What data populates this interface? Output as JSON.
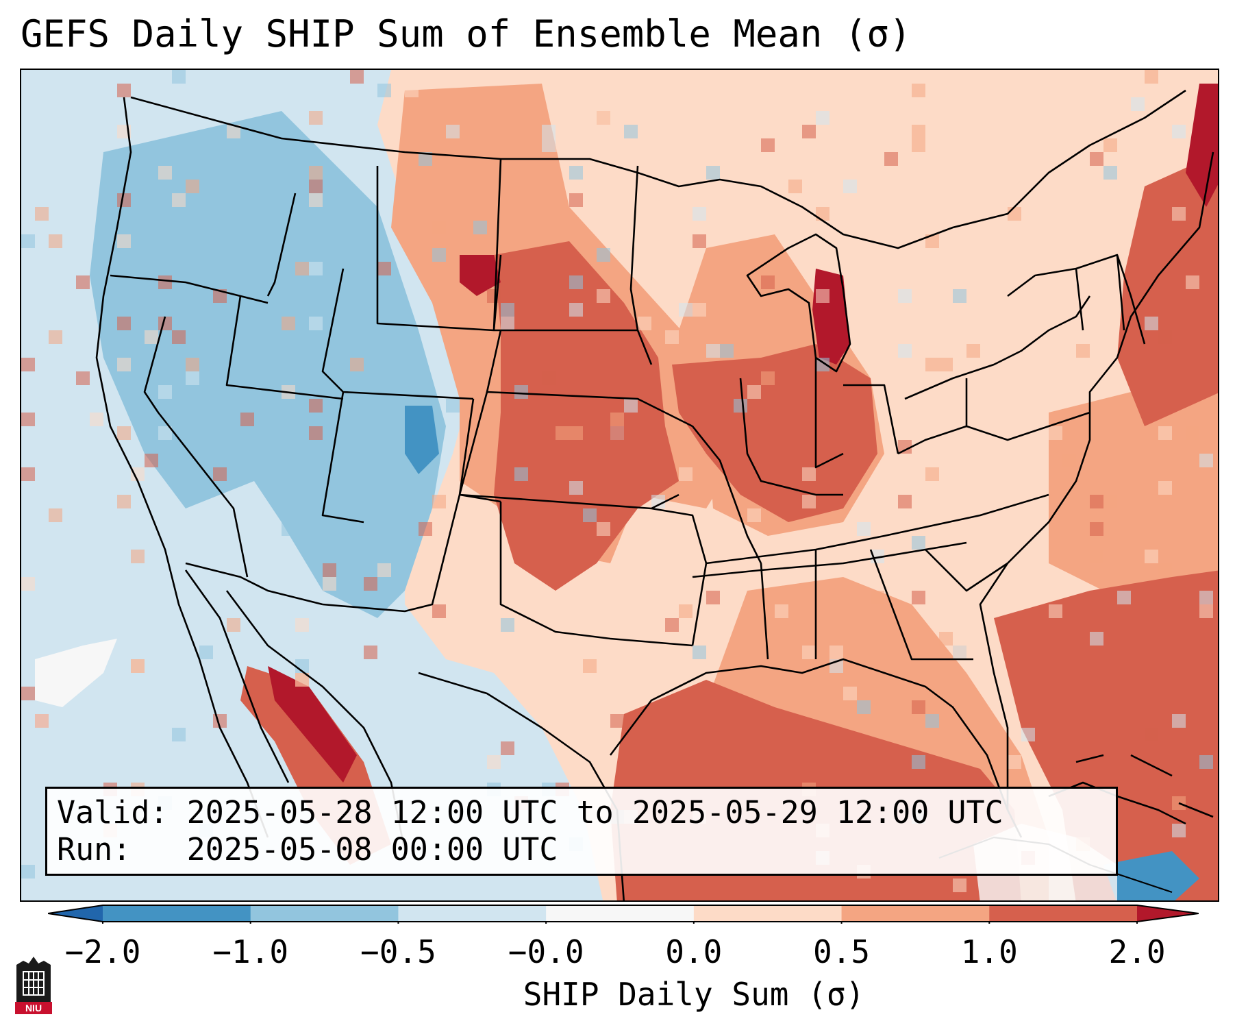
{
  "header": {
    "title": "GEFS Daily SHIP Sum of Ensemble Mean (σ)"
  },
  "info_box": {
    "valid_line": "Valid: 2025-05-28 12:00 UTC to 2025-05-29 12:00 UTC",
    "run_line": "Run:   2025-05-08 00:00 UTC"
  },
  "colorbar": {
    "label": "SHIP Daily Sum (σ)",
    "ticks": [
      "−2.0",
      "−1.0",
      "−0.5",
      "−0.0",
      "0.0",
      "0.5",
      "1.0",
      "2.0"
    ],
    "bins": [
      "#4393c3",
      "#92c5de",
      "#d1e5f0",
      "#f7f7f7",
      "#fddbc7",
      "#f4a582",
      "#d6604d"
    ],
    "under_color": "#2166ac",
    "over_color": "#b2182b"
  },
  "logo": {
    "text": "NIU"
  }
}
